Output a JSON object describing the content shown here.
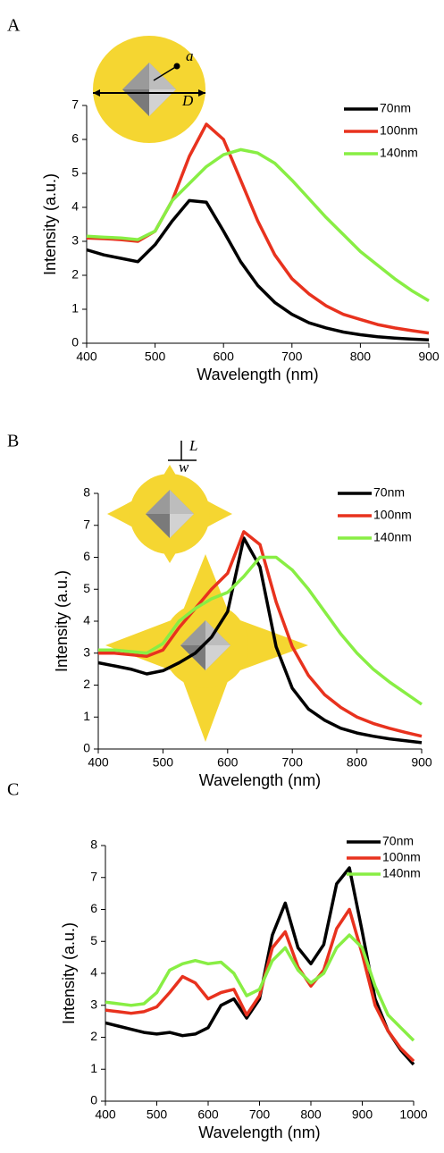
{
  "chart_data": [
    {
      "type": "line",
      "panel": "A",
      "xlabel": "Wavelength (nm)",
      "ylabel": "Intensity (a.u.)",
      "annotations": [
        "a",
        "D"
      ],
      "x": [
        400,
        425,
        450,
        475,
        500,
        525,
        550,
        575,
        600,
        625,
        650,
        675,
        700,
        725,
        750,
        775,
        800,
        825,
        850,
        875,
        900
      ],
      "series": [
        {
          "name": "70nm",
          "color": "#000000",
          "values": [
            2.75,
            2.6,
            2.5,
            2.4,
            2.9,
            3.6,
            4.2,
            4.15,
            3.3,
            2.4,
            1.7,
            1.2,
            0.85,
            0.6,
            0.45,
            0.33,
            0.25,
            0.19,
            0.15,
            0.12,
            0.1
          ]
        },
        {
          "name": "100nm",
          "color": "#e8321e",
          "values": [
            3.1,
            3.08,
            3.05,
            3.0,
            3.3,
            4.2,
            5.5,
            6.45,
            6.0,
            4.8,
            3.6,
            2.6,
            1.9,
            1.45,
            1.1,
            0.85,
            0.7,
            0.55,
            0.45,
            0.37,
            0.3
          ]
        },
        {
          "name": "140nm",
          "color": "#88ee44",
          "values": [
            3.15,
            3.12,
            3.1,
            3.05,
            3.3,
            4.2,
            4.7,
            5.2,
            5.55,
            5.7,
            5.6,
            5.3,
            4.8,
            4.25,
            3.7,
            3.2,
            2.7,
            2.3,
            1.9,
            1.55,
            1.25
          ]
        }
      ],
      "xlim": [
        400,
        900
      ],
      "xticks": [
        400,
        500,
        600,
        700,
        800,
        900
      ],
      "ylim": [
        0,
        7
      ],
      "yticks": [
        0,
        1,
        2,
        3,
        4,
        5,
        6,
        7
      ]
    },
    {
      "type": "line",
      "panel": "B",
      "xlabel": "Wavelength (nm)",
      "ylabel": "Intensity (a.u.)",
      "annotations": [
        "L",
        "w"
      ],
      "x": [
        400,
        425,
        450,
        475,
        500,
        525,
        550,
        575,
        600,
        625,
        650,
        675,
        700,
        725,
        750,
        775,
        800,
        825,
        850,
        875,
        900
      ],
      "series": [
        {
          "name": "70nm",
          "color": "#000000",
          "values": [
            2.7,
            2.6,
            2.5,
            2.35,
            2.45,
            2.7,
            3.0,
            3.5,
            4.3,
            6.6,
            5.7,
            3.2,
            1.9,
            1.25,
            0.9,
            0.65,
            0.5,
            0.4,
            0.32,
            0.26,
            0.2
          ]
        },
        {
          "name": "100nm",
          "color": "#e8321e",
          "values": [
            3.0,
            3.0,
            2.95,
            2.9,
            3.1,
            3.8,
            4.4,
            5.0,
            5.5,
            6.8,
            6.4,
            4.6,
            3.2,
            2.3,
            1.7,
            1.3,
            1.0,
            0.8,
            0.65,
            0.52,
            0.4
          ]
        },
        {
          "name": "140nm",
          "color": "#88ee44",
          "values": [
            3.1,
            3.1,
            3.05,
            3.0,
            3.3,
            4.0,
            4.4,
            4.7,
            4.9,
            5.4,
            6.0,
            6.0,
            5.6,
            5.0,
            4.3,
            3.6,
            3.0,
            2.5,
            2.1,
            1.75,
            1.4
          ]
        }
      ],
      "xlim": [
        400,
        900
      ],
      "xticks": [
        400,
        500,
        600,
        700,
        800,
        900
      ],
      "ylim": [
        0,
        8
      ],
      "yticks": [
        0,
        1,
        2,
        3,
        4,
        5,
        6,
        7,
        8
      ]
    },
    {
      "type": "line",
      "panel": "C",
      "xlabel": "Wavelength (nm)",
      "ylabel": "Intensity (a.u.)",
      "annotations": [],
      "x": [
        400,
        425,
        450,
        475,
        500,
        525,
        550,
        575,
        600,
        625,
        650,
        675,
        700,
        725,
        750,
        775,
        800,
        825,
        850,
        875,
        900,
        925,
        950,
        975,
        1000
      ],
      "series": [
        {
          "name": "70nm",
          "color": "#000000",
          "values": [
            2.45,
            2.35,
            2.25,
            2.15,
            2.1,
            2.15,
            2.05,
            2.1,
            2.3,
            3.0,
            3.2,
            2.6,
            3.2,
            5.2,
            6.2,
            4.8,
            4.3,
            4.9,
            6.8,
            7.3,
            5.3,
            3.2,
            2.2,
            1.6,
            1.15
          ]
        },
        {
          "name": "100nm",
          "color": "#e8321e",
          "values": [
            2.85,
            2.8,
            2.75,
            2.8,
            2.95,
            3.4,
            3.9,
            3.7,
            3.2,
            3.4,
            3.5,
            2.7,
            3.3,
            4.8,
            5.3,
            4.2,
            3.6,
            4.1,
            5.4,
            6.0,
            4.6,
            3.0,
            2.2,
            1.65,
            1.25
          ]
        },
        {
          "name": "140nm",
          "color": "#88ee44",
          "values": [
            3.1,
            3.05,
            3.0,
            3.05,
            3.4,
            4.1,
            4.3,
            4.4,
            4.3,
            4.35,
            4.0,
            3.3,
            3.5,
            4.4,
            4.8,
            4.1,
            3.7,
            4.0,
            4.8,
            5.2,
            4.8,
            3.6,
            2.7,
            2.3,
            1.9
          ]
        }
      ],
      "xlim": [
        400,
        1000
      ],
      "xticks": [
        400,
        500,
        600,
        700,
        800,
        900,
        1000
      ],
      "ylim": [
        0,
        8
      ],
      "yticks": [
        0,
        1,
        2,
        3,
        4,
        5,
        6,
        7,
        8
      ]
    }
  ]
}
